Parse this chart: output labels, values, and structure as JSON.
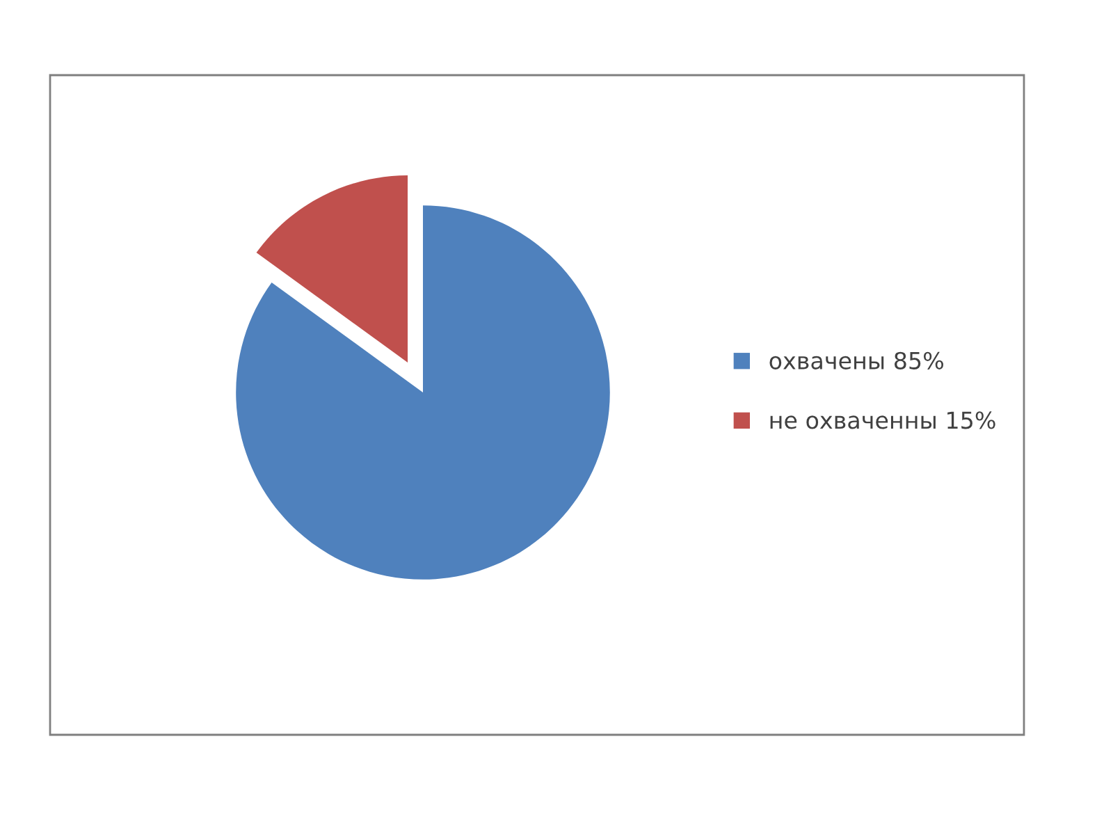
{
  "chart_data": {
    "type": "pie",
    "categories": [
      "охвачены 85%",
      "не охваченны 15%"
    ],
    "values": [
      85,
      15
    ],
    "colors": [
      "#4f81bd",
      "#c0504d"
    ],
    "legend": "right"
  }
}
